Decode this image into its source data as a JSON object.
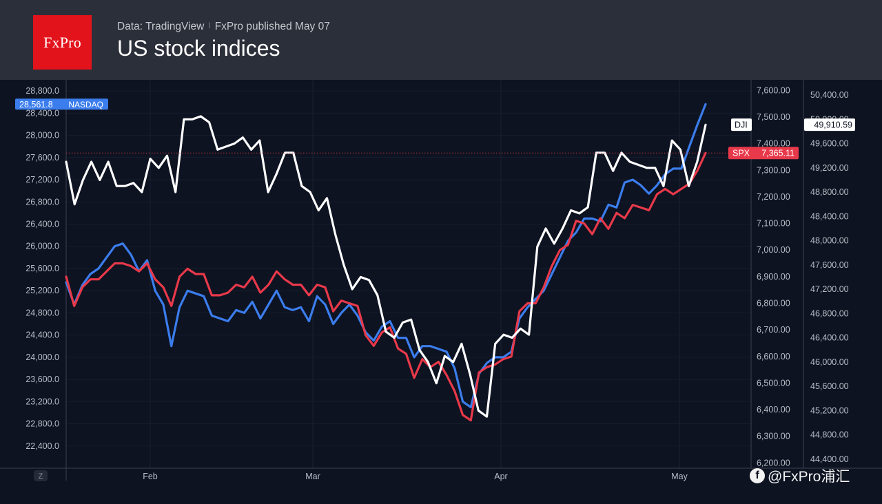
{
  "header": {
    "brand": "FxPro",
    "source": "Data: TradingView",
    "published": "FxPro published May 07",
    "title": "US stock indices"
  },
  "watermark": {
    "text": "@FxPro浦汇",
    "icon": "facebook-icon"
  },
  "colors": {
    "nasdaq": "#3b7ded",
    "spx": "#e8394a",
    "dji": "#ffffff",
    "background": "#0d1321",
    "header": "#2b2f39",
    "logo": "#e3131b"
  },
  "chart_data": {
    "type": "line",
    "grid": true,
    "x_ticks": [
      "Feb",
      "Mar",
      "Apr",
      "May"
    ],
    "tz_button": "Z",
    "axes": {
      "left": {
        "series": "NASDAQ",
        "range": [
          22000,
          29000
        ],
        "ticks": [
          "22,400.0",
          "22,800.0",
          "23,200.0",
          "23,600.0",
          "24,000.0",
          "24,400.0",
          "24,800.0",
          "25,200.0",
          "25,600.0",
          "26,000.0",
          "26,400.0",
          "26,800.0",
          "27,200.0",
          "27,600.0",
          "28,000.0",
          "28,400.0",
          "28,800.0"
        ]
      },
      "middle": {
        "series": "SPX",
        "range": [
          6180,
          7640
        ],
        "ticks": [
          "6,200.00",
          "6,300.00",
          "6,400.00",
          "6,500.00",
          "6,600.00",
          "6,700.00",
          "6,800.00",
          "6,900.00",
          "7,000.00",
          "7,100.00",
          "7,200.00",
          "7,300.00",
          "7,400.00",
          "7,500.00",
          "7,600.00"
        ]
      },
      "right": {
        "series": "DJI",
        "range": [
          44250,
          50650
        ],
        "ticks": [
          "44,400.00",
          "44,800.00",
          "45,200.00",
          "45,600.00",
          "46,000.00",
          "46,400.00",
          "46,800.00",
          "47,200.00",
          "47,600.00",
          "48,000.00",
          "48,400.00",
          "48,800.00",
          "49,200.00",
          "49,600.00",
          "50,000.00",
          "50,400.00"
        ]
      }
    },
    "series": [
      {
        "name": "NASDAQ",
        "last_label": "28,561.8",
        "values": [
          25350,
          24950,
          25300,
          25500,
          25600,
          25800,
          26000,
          26050,
          25850,
          25550,
          25750,
          25200,
          24950,
          24200,
          24900,
          25200,
          25150,
          25100,
          24750,
          24700,
          24650,
          24850,
          24800,
          25000,
          24700,
          24950,
          25200,
          24900,
          24850,
          24900,
          24650,
          25100,
          24950,
          24600,
          24800,
          24950,
          24750,
          24450,
          24300,
          24550,
          24650,
          24350,
          24350,
          24000,
          24200,
          24200,
          24150,
          24100,
          23800,
          23200,
          23100,
          23700,
          23900,
          24000,
          24000,
          24100,
          24700,
          24900,
          25050,
          25200,
          25500,
          25800,
          26100,
          26250,
          26500,
          26500,
          26450,
          26750,
          26700,
          27150,
          27200,
          27100,
          26950,
          27100,
          27300,
          27400,
          27400,
          27800,
          28200,
          28561.8
        ]
      },
      {
        "name": "SPX",
        "last_label": "7,365.11",
        "values": [
          6900,
          6790,
          6860,
          6890,
          6890,
          6920,
          6950,
          6950,
          6940,
          6920,
          6950,
          6890,
          6860,
          6790,
          6900,
          6930,
          6910,
          6910,
          6830,
          6830,
          6840,
          6870,
          6860,
          6900,
          6840,
          6870,
          6920,
          6890,
          6870,
          6870,
          6830,
          6870,
          6860,
          6770,
          6810,
          6800,
          6790,
          6680,
          6640,
          6690,
          6710,
          6630,
          6610,
          6520,
          6590,
          6560,
          6580,
          6530,
          6470,
          6380,
          6360,
          6540,
          6560,
          6570,
          6590,
          6600,
          6770,
          6800,
          6800,
          6860,
          6940,
          7000,
          7020,
          7110,
          7100,
          7060,
          7120,
          7080,
          7140,
          7120,
          7170,
          7160,
          7150,
          7210,
          7230,
          7210,
          7230,
          7250,
          7300,
          7365.11
        ]
      },
      {
        "name": "DJI",
        "last_label": "49,910.59",
        "values": [
          49300,
          48600,
          49000,
          49300,
          49000,
          49300,
          48900,
          48900,
          48950,
          48800,
          49350,
          49200,
          49400,
          48800,
          50000,
          50000,
          50050,
          49950,
          49500,
          49550,
          49600,
          49700,
          49500,
          49650,
          48800,
          49100,
          49450,
          49450,
          48900,
          48800,
          48500,
          48700,
          48100,
          47600,
          47200,
          47400,
          47350,
          47100,
          46500,
          46400,
          46650,
          46700,
          46200,
          46000,
          45650,
          46100,
          46000,
          46300,
          45800,
          45200,
          45100,
          46300,
          46450,
          46400,
          46550,
          46450,
          47900,
          48200,
          47950,
          48200,
          48500,
          48450,
          48550,
          49450,
          49450,
          49150,
          49450,
          49300,
          49250,
          49200,
          49200,
          48900,
          49650,
          49500,
          48900,
          49300,
          49910.59
        ]
      }
    ]
  }
}
